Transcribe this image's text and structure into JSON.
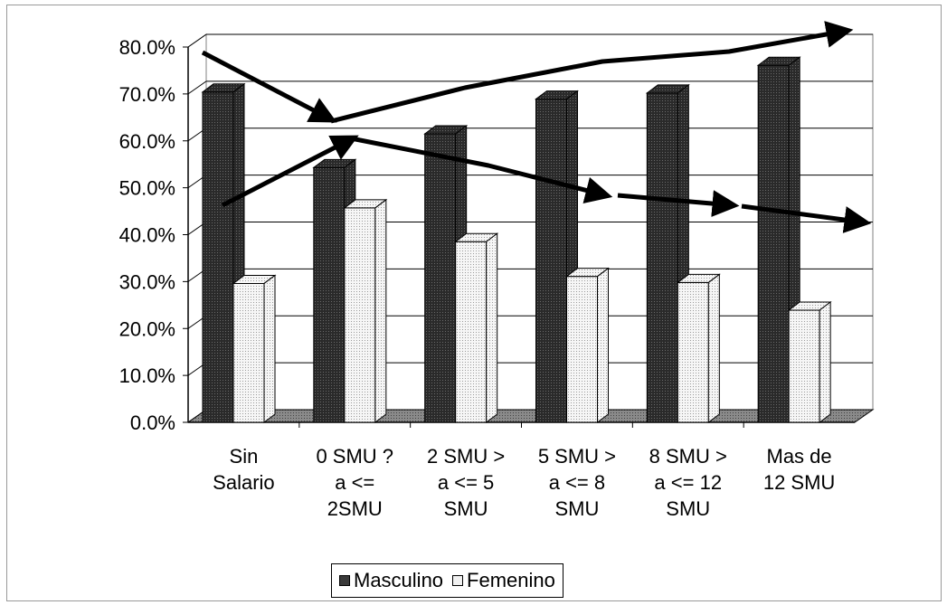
{
  "chart_data": {
    "type": "bar",
    "categories": [
      [
        "Sin",
        "Salario"
      ],
      [
        "0 SMU ?",
        "a <=",
        "2SMU"
      ],
      [
        "2 SMU >",
        "a <= 5",
        "SMU"
      ],
      [
        "5 SMU >",
        "a <= 8",
        "SMU"
      ],
      [
        "8 SMU >",
        "a <= 12",
        "SMU"
      ],
      [
        "Mas de",
        "12 SMU"
      ]
    ],
    "series": [
      {
        "name": "Masculino",
        "values": [
          70.4,
          54.3,
          61.5,
          68.9,
          70.2,
          76.1
        ],
        "color": "#3a3a3a"
      },
      {
        "name": "Femenino",
        "values": [
          29.6,
          45.7,
          38.5,
          31.1,
          29.8,
          23.9
        ],
        "color": "#f1f1f1"
      }
    ],
    "yticks": [
      "0.0%",
      "10.0%",
      "20.0%",
      "30.0%",
      "40.0%",
      "50.0%",
      "60.0%",
      "70.0%",
      "80.0%"
    ],
    "ylim": [
      0,
      80
    ],
    "grid": true,
    "three_d": true,
    "legend_position": "bottom",
    "annotations": "hand-drawn trend arrows over bars"
  }
}
